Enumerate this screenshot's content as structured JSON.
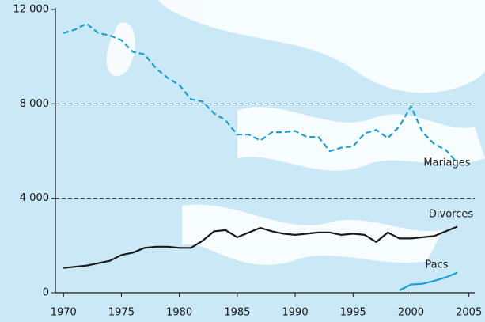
{
  "chart_data": {
    "type": "line",
    "x": [
      1970,
      1971,
      1972,
      1973,
      1974,
      1975,
      1976,
      1977,
      1978,
      1979,
      1980,
      1981,
      1982,
      1983,
      1984,
      1985,
      1986,
      1987,
      1988,
      1989,
      1990,
      1991,
      1992,
      1993,
      1994,
      1995,
      1996,
      1997,
      1998,
      1999,
      2000,
      2001,
      2002,
      2003,
      2004
    ],
    "series": [
      {
        "name": "Mariages",
        "color": "#1a9fd9",
        "dashed": true,
        "values": [
          11000,
          11150,
          11400,
          11000,
          10900,
          10700,
          10200,
          10100,
          9500,
          9100,
          8800,
          8200,
          8100,
          7600,
          7300,
          6700,
          6700,
          6450,
          6800,
          6800,
          6850,
          6600,
          6600,
          6000,
          6150,
          6200,
          6750,
          6900,
          6550,
          7050,
          7900,
          6800,
          6300,
          6050,
          5500
        ]
      },
      {
        "name": "Divorces",
        "color": "#1a1a1a",
        "dashed": false,
        "values": [
          1050,
          1100,
          1150,
          1250,
          1350,
          1600,
          1700,
          1900,
          1950,
          1950,
          1900,
          1900,
          2200,
          2600,
          2650,
          2350,
          2550,
          2750,
          2600,
          2500,
          2450,
          2500,
          2550,
          2550,
          2450,
          2500,
          2450,
          2150,
          2550,
          2300,
          2300,
          2350,
          2400,
          2600,
          2800
        ]
      },
      {
        "name": "Pacs",
        "color": "#1a9fd9",
        "dashed": false,
        "values": [
          null,
          null,
          null,
          null,
          null,
          null,
          null,
          null,
          null,
          null,
          null,
          null,
          null,
          null,
          null,
          null,
          null,
          null,
          null,
          null,
          null,
          null,
          null,
          null,
          null,
          null,
          null,
          null,
          null,
          100,
          350,
          380,
          500,
          650,
          850
        ]
      }
    ],
    "xlim": [
      1969.3,
      2005.5
    ],
    "xticks": [
      1970,
      1975,
      1980,
      1985,
      1990,
      1995,
      2000,
      2005
    ],
    "ylim": [
      0,
      12000
    ],
    "yticks": [
      0,
      {
        "value": 4000,
        "label": "4 000"
      },
      {
        "value": 8000,
        "label": "8 000"
      },
      {
        "value": 12000,
        "label": "12 000"
      }
    ],
    "grid": true
  }
}
